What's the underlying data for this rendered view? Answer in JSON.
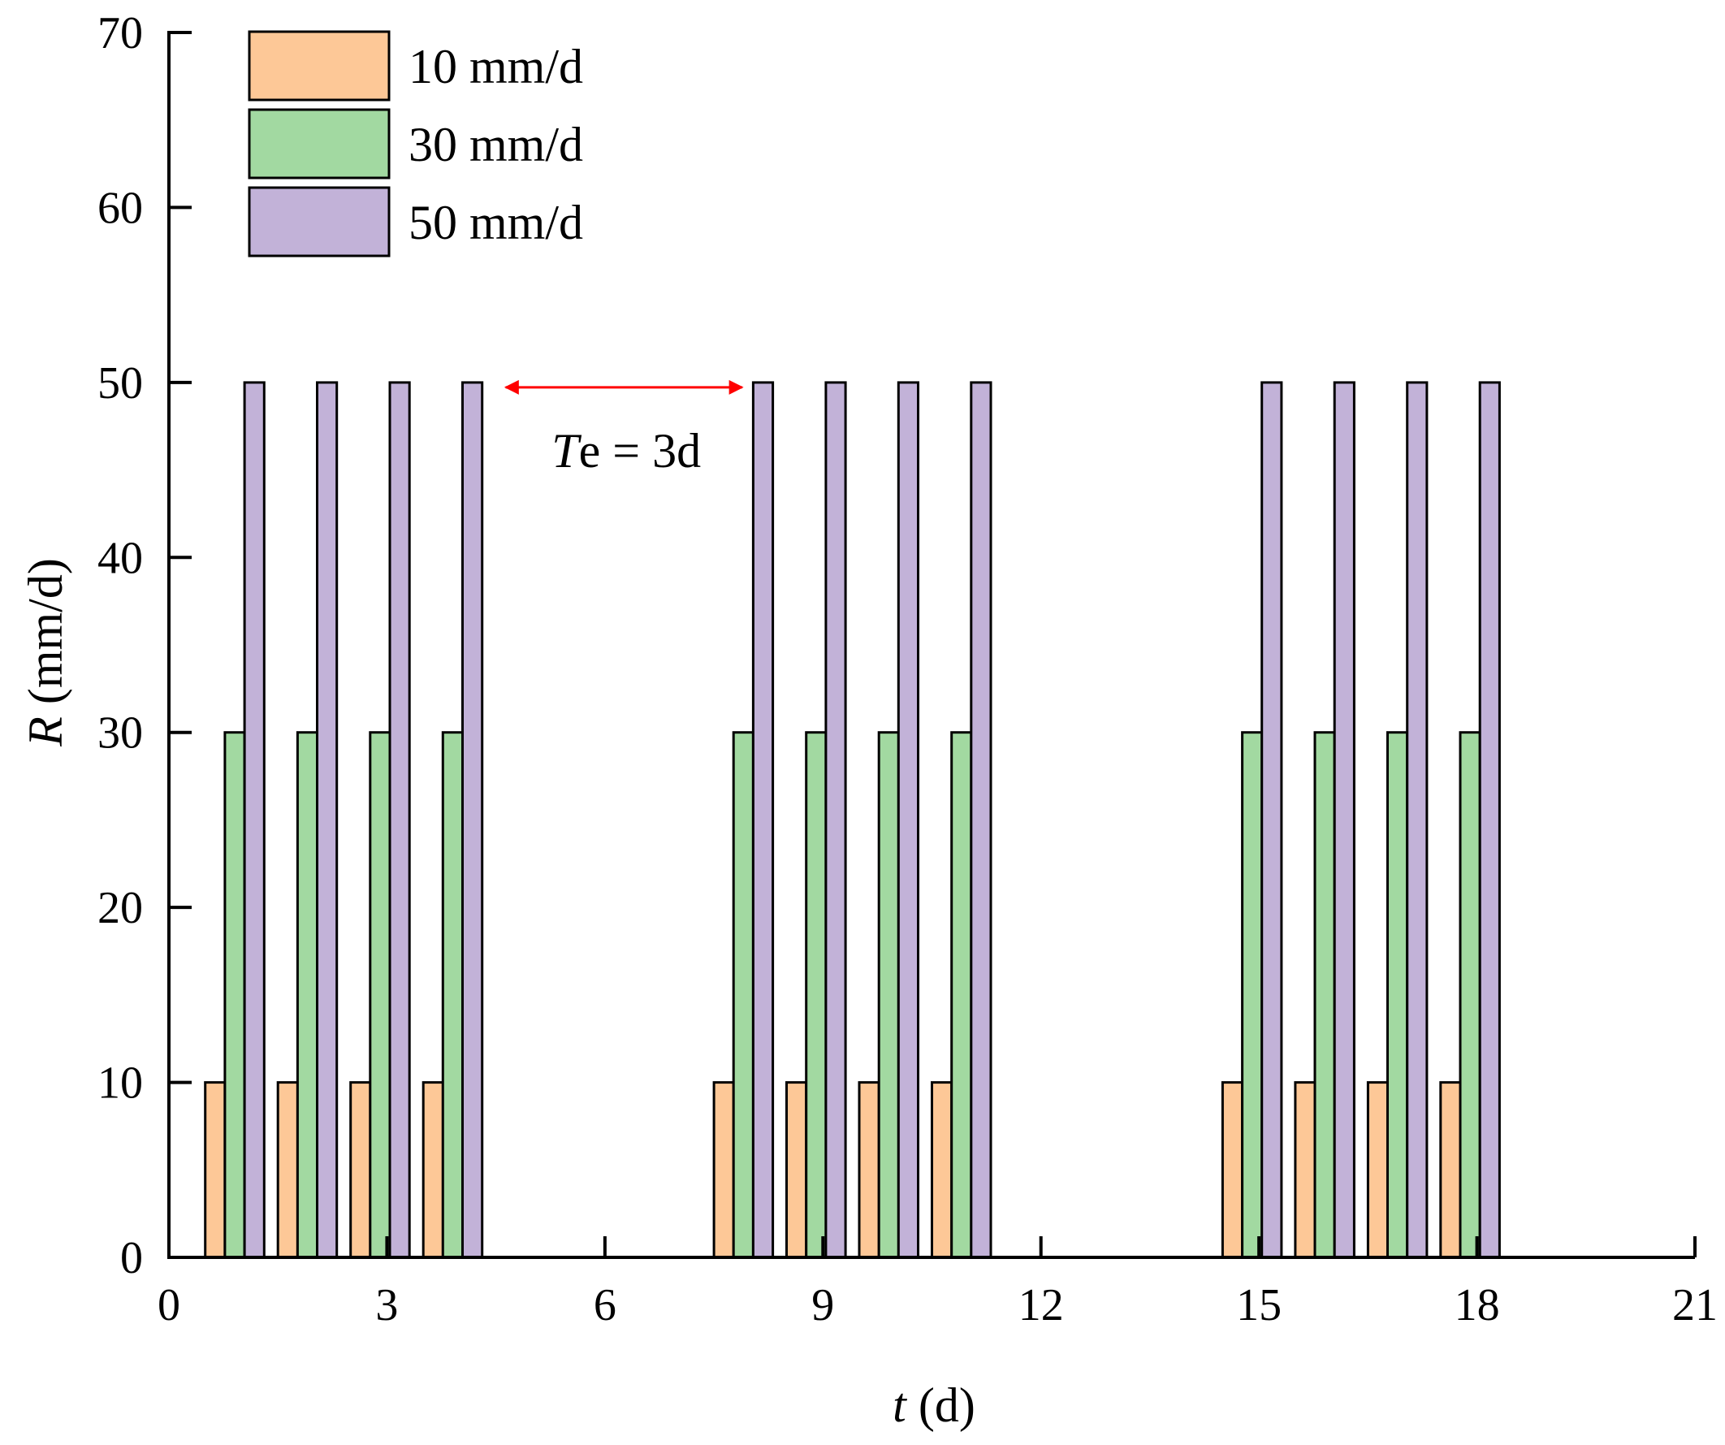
{
  "chart_data": {
    "type": "bar",
    "xlabel": {
      "var": "t",
      "unit": " (d)"
    },
    "ylabel": {
      "var": "R",
      "unit": " (mm/d)"
    },
    "xlim": [
      0,
      21
    ],
    "ylim": [
      0,
      70
    ],
    "xticks": [
      0,
      3,
      6,
      9,
      12,
      15,
      18,
      21
    ],
    "yticks": [
      0,
      10,
      20,
      30,
      40,
      50,
      60,
      70
    ],
    "grid": false,
    "legend_position": "top-left",
    "rain_days": [
      1,
      2,
      3,
      4,
      8,
      9,
      10,
      11,
      15,
      16,
      17,
      18
    ],
    "series": [
      {
        "name": "10 mm/d",
        "value": 10,
        "color": "#FDC897"
      },
      {
        "name": "30 mm/d",
        "value": 30,
        "color": "#A2D9A1"
      },
      {
        "name": "50 mm/d",
        "value": 50,
        "color": "#C2B2D8"
      }
    ],
    "annotation": {
      "label_italic": "T",
      "label_rest": "e = 3d",
      "from_x": 4.5,
      "to_x": 8,
      "y": 50,
      "color": "#FF0000"
    }
  }
}
